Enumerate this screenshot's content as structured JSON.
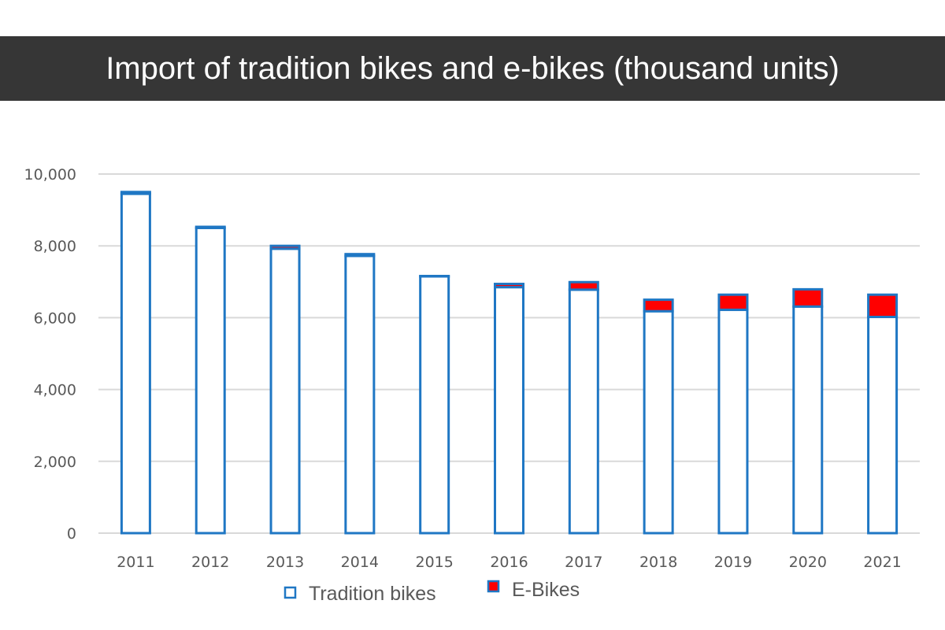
{
  "chart_data": {
    "type": "bar",
    "stacked": true,
    "title": "Import of tradition bikes and e-bikes (thousand units)",
    "categories": [
      "2011",
      "2012",
      "2013",
      "2014",
      "2015",
      "2016",
      "2017",
      "2018",
      "2019",
      "2020",
      "2021"
    ],
    "series": [
      {
        "name": "Tradition bikes",
        "values": [
          9450,
          8500,
          7920,
          7720,
          7150,
          6850,
          6780,
          6180,
          6220,
          6310,
          6020
        ],
        "fill": "#ffffff",
        "stroke": "#1f77c4"
      },
      {
        "name": "E-Bikes",
        "values": [
          50,
          30,
          80,
          50,
          10,
          90,
          210,
          320,
          420,
          480,
          620
        ],
        "fill": "#ff0000",
        "stroke": "#1f77c4"
      }
    ],
    "yticks": [
      "0",
      "2,000",
      "4,000",
      "6,000",
      "8,000",
      "10,000"
    ],
    "ylim": [
      0,
      10000
    ],
    "grid": true,
    "legend_placement": "bottom"
  }
}
